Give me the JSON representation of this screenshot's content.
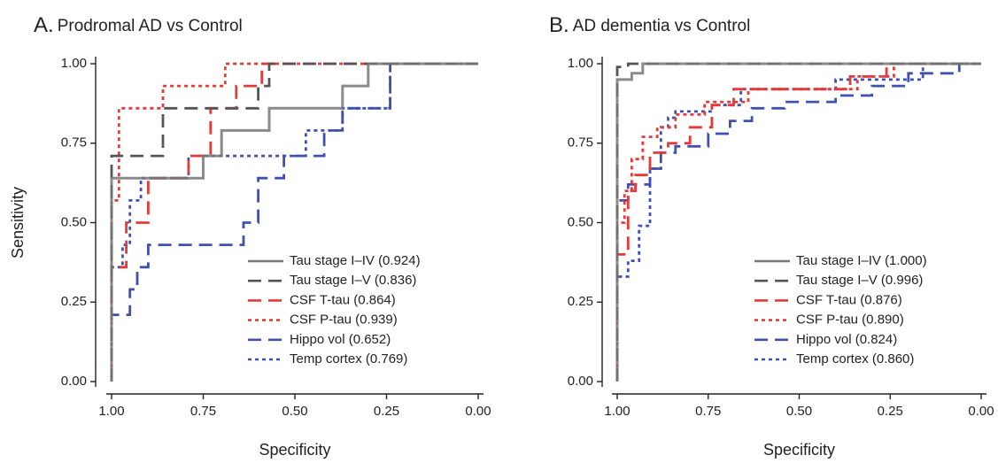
{
  "chart_data": [
    {
      "type": "line",
      "panel_letter": "A.",
      "title": "Prodromal AD vs Control",
      "xlabel": "Specificity",
      "ylabel": "Sensitivity",
      "xlim": [
        1.0,
        0.0
      ],
      "ylim": [
        0.0,
        1.0
      ],
      "xticks": [
        "1.00",
        "0.75",
        "0.50",
        "0.25",
        "0.00"
      ],
      "yticks": [
        "0.00",
        "0.25",
        "0.50",
        "0.75",
        "1.00"
      ],
      "grid": false,
      "legend_position": "bottom-right",
      "series": [
        {
          "name": "Hippo vol (0.652)",
          "color": "#4050b0",
          "dash": "long",
          "x": [
            1.0,
            1.0,
            0.99,
            0.99,
            0.95,
            0.95,
            0.93,
            0.93,
            0.9,
            0.9,
            0.78,
            0.78,
            0.64,
            0.64,
            0.6,
            0.6,
            0.53,
            0.53,
            0.42,
            0.42,
            0.37,
            0.37,
            0.24,
            0.24,
            0.18,
            0.0
          ],
          "y": [
            0.0,
            0.21,
            0.21,
            0.21,
            0.21,
            0.29,
            0.29,
            0.36,
            0.36,
            0.43,
            0.43,
            0.43,
            0.43,
            0.5,
            0.5,
            0.64,
            0.64,
            0.71,
            0.71,
            0.79,
            0.79,
            0.86,
            0.86,
            1.0,
            1.0,
            1.0
          ]
        },
        {
          "name": "Temp cortex (0.769)",
          "color": "#4050b0",
          "dash": "short",
          "x": [
            1.0,
            1.0,
            0.97,
            0.97,
            0.95,
            0.95,
            0.92,
            0.92,
            0.88,
            0.88,
            0.79,
            0.79,
            0.73,
            0.73,
            0.47,
            0.47,
            0.37,
            0.37,
            0.3,
            0.3,
            0.24,
            0.24,
            0.0
          ],
          "y": [
            0.0,
            0.36,
            0.36,
            0.43,
            0.43,
            0.57,
            0.57,
            0.64,
            0.64,
            0.64,
            0.64,
            0.71,
            0.71,
            0.71,
            0.71,
            0.79,
            0.79,
            0.86,
            0.86,
            0.86,
            0.86,
            1.0,
            1.0
          ]
        },
        {
          "name": "CSF T-tau (0.864)",
          "color": "#e63a3a",
          "dash": "long",
          "x": [
            1.0,
            1.0,
            0.96,
            0.96,
            0.9,
            0.9,
            0.86,
            0.86,
            0.79,
            0.79,
            0.73,
            0.73,
            0.66,
            0.66,
            0.59,
            0.59,
            0.52,
            0.52,
            0.0
          ],
          "y": [
            0.0,
            0.36,
            0.36,
            0.5,
            0.5,
            0.64,
            0.64,
            0.64,
            0.64,
            0.71,
            0.71,
            0.86,
            0.86,
            0.93,
            0.93,
            1.0,
            1.0,
            1.0,
            1.0
          ]
        },
        {
          "name": "CSF P-tau (0.939)",
          "color": "#e63a3a",
          "dash": "short",
          "x": [
            1.0,
            1.0,
            0.98,
            0.98,
            0.96,
            0.96,
            0.92,
            0.92,
            0.86,
            0.86,
            0.82,
            0.82,
            0.69,
            0.69,
            0.58,
            0.58,
            0.0
          ],
          "y": [
            0.0,
            0.57,
            0.57,
            0.86,
            0.86,
            0.86,
            0.86,
            0.86,
            0.86,
            0.93,
            0.93,
            0.93,
            0.93,
            1.0,
            1.0,
            1.0,
            1.0
          ]
        },
        {
          "name": "Tau stage I–V (0.836)",
          "color": "#555555",
          "dash": "long",
          "x": [
            1.0,
            1.0,
            0.86,
            0.86,
            0.75,
            0.75,
            0.6,
            0.6,
            0.57,
            0.57,
            0.0
          ],
          "y": [
            0.0,
            0.71,
            0.71,
            0.86,
            0.86,
            0.86,
            0.86,
            0.93,
            0.93,
            1.0,
            1.0
          ]
        },
        {
          "name": "Tau stage I–IV (0.924)",
          "color": "#777777",
          "dash": "solid",
          "x": [
            1.0,
            1.0,
            0.75,
            0.75,
            0.7,
            0.7,
            0.57,
            0.57,
            0.37,
            0.37,
            0.3,
            0.3,
            0.24,
            0.24,
            0.0
          ],
          "y": [
            0.0,
            0.64,
            0.64,
            0.71,
            0.71,
            0.79,
            0.79,
            0.86,
            0.86,
            0.93,
            0.93,
            1.0,
            1.0,
            1.0,
            1.0
          ]
        }
      ],
      "legend_order": [
        5,
        4,
        2,
        3,
        0,
        1
      ]
    },
    {
      "type": "line",
      "panel_letter": "B.",
      "title": "AD dementia vs Control",
      "xlabel": "Specificity",
      "ylabel": "",
      "xlim": [
        1.0,
        0.0
      ],
      "ylim": [
        0.0,
        1.0
      ],
      "xticks": [
        "1.00",
        "0.75",
        "0.50",
        "0.25",
        "0.00"
      ],
      "yticks": [
        "0.00",
        "0.25",
        "0.50",
        "0.75",
        "1.00"
      ],
      "grid": false,
      "legend_position": "bottom-right",
      "series": [
        {
          "name": "Hippo vol (0.824)",
          "color": "#4050b0",
          "dash": "long",
          "x": [
            1.0,
            1.0,
            0.97,
            0.97,
            0.94,
            0.94,
            0.91,
            0.91,
            0.88,
            0.88,
            0.84,
            0.84,
            0.75,
            0.75,
            0.69,
            0.69,
            0.63,
            0.63,
            0.54,
            0.54,
            0.4,
            0.4,
            0.3,
            0.3,
            0.2,
            0.2,
            0.06,
            0.06,
            0.0
          ],
          "y": [
            0.0,
            0.57,
            0.57,
            0.62,
            0.62,
            0.62,
            0.62,
            0.67,
            0.67,
            0.72,
            0.72,
            0.74,
            0.74,
            0.78,
            0.78,
            0.82,
            0.82,
            0.86,
            0.86,
            0.88,
            0.88,
            0.9,
            0.9,
            0.93,
            0.93,
            0.97,
            0.97,
            1.0,
            1.0
          ]
        },
        {
          "name": "Temp cortex (0.860)",
          "color": "#4050b0",
          "dash": "short",
          "x": [
            1.0,
            1.0,
            0.97,
            0.97,
            0.94,
            0.94,
            0.91,
            0.91,
            0.88,
            0.88,
            0.86,
            0.86,
            0.84,
            0.84,
            0.8,
            0.8,
            0.74,
            0.74,
            0.66,
            0.66,
            0.4,
            0.4,
            0.16,
            0.16,
            0.0
          ],
          "y": [
            0.0,
            0.33,
            0.33,
            0.38,
            0.38,
            0.49,
            0.49,
            0.67,
            0.67,
            0.8,
            0.8,
            0.83,
            0.83,
            0.85,
            0.85,
            0.85,
            0.85,
            0.87,
            0.87,
            0.92,
            0.92,
            0.95,
            0.95,
            1.0,
            1.0
          ]
        },
        {
          "name": "CSF T-tau (0.876)",
          "color": "#e63a3a",
          "dash": "long",
          "x": [
            1.0,
            1.0,
            0.97,
            0.97,
            0.95,
            0.95,
            0.91,
            0.91,
            0.86,
            0.86,
            0.8,
            0.8,
            0.74,
            0.74,
            0.68,
            0.68,
            0.36,
            0.36,
            0.26,
            0.26,
            0.0
          ],
          "y": [
            0.0,
            0.4,
            0.4,
            0.6,
            0.6,
            0.65,
            0.65,
            0.72,
            0.72,
            0.75,
            0.75,
            0.8,
            0.8,
            0.87,
            0.87,
            0.92,
            0.92,
            0.96,
            0.96,
            1.0,
            1.0
          ]
        },
        {
          "name": "CSF P-tau (0.890)",
          "color": "#e63a3a",
          "dash": "short",
          "x": [
            1.0,
            1.0,
            0.98,
            0.98,
            0.96,
            0.96,
            0.93,
            0.93,
            0.89,
            0.89,
            0.84,
            0.84,
            0.76,
            0.76,
            0.64,
            0.64,
            0.34,
            0.34,
            0.24,
            0.24,
            0.0
          ],
          "y": [
            0.0,
            0.5,
            0.5,
            0.6,
            0.6,
            0.7,
            0.7,
            0.77,
            0.77,
            0.8,
            0.8,
            0.84,
            0.84,
            0.88,
            0.88,
            0.92,
            0.92,
            0.96,
            0.96,
            1.0,
            1.0
          ]
        },
        {
          "name": "Tau stage I–V (0.996)",
          "color": "#555555",
          "dash": "long",
          "x": [
            1.0,
            1.0,
            0.97,
            0.97,
            0.0
          ],
          "y": [
            0.0,
            0.99,
            0.99,
            1.0,
            1.0
          ]
        },
        {
          "name": "Tau stage I–IV (1.000)",
          "color": "#777777",
          "dash": "solid",
          "x": [
            1.0,
            1.0,
            0.96,
            0.96,
            0.93,
            0.93,
            0.0
          ],
          "y": [
            0.0,
            0.95,
            0.95,
            0.97,
            0.97,
            1.0,
            1.0
          ]
        }
      ],
      "legend_order": [
        5,
        4,
        2,
        3,
        0,
        1
      ]
    }
  ]
}
